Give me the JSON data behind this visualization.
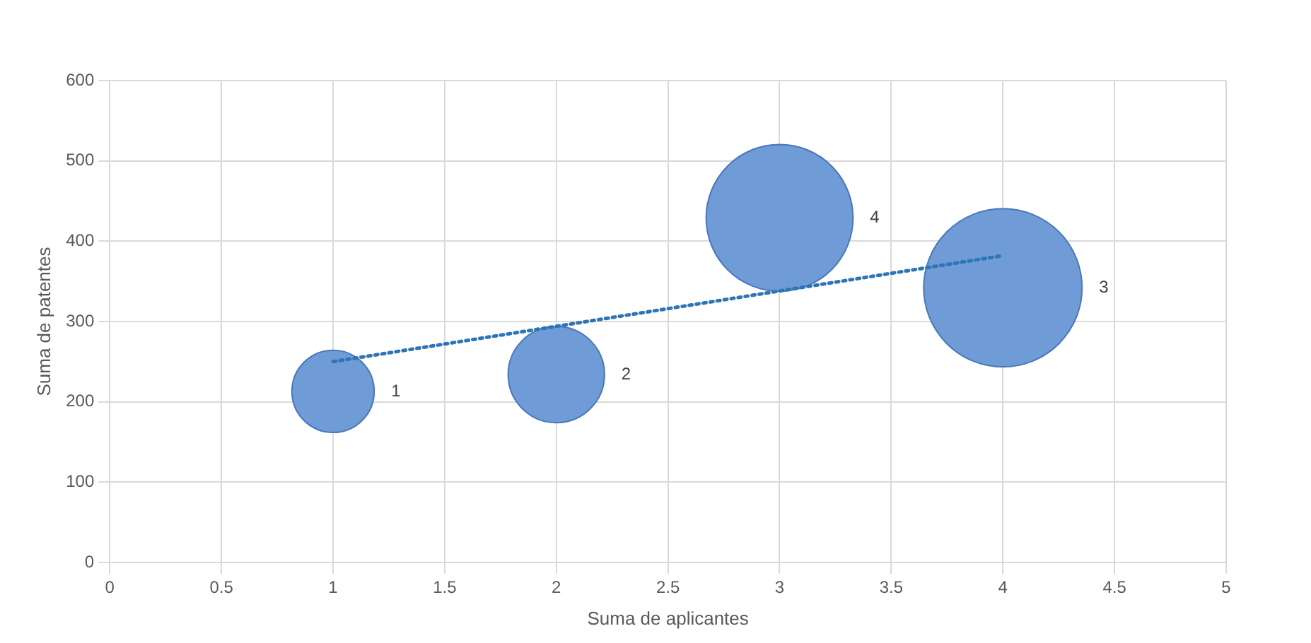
{
  "chart_data": {
    "type": "bubble",
    "xlabel": "Suma de aplicantes",
    "ylabel": "Suma de patentes",
    "xlim": [
      0,
      5
    ],
    "xticks": [
      0,
      0.5,
      1,
      1.5,
      2,
      2.5,
      3,
      3.5,
      4,
      4.5,
      5
    ],
    "ylim": [
      0,
      600
    ],
    "yticks": [
      0,
      100,
      200,
      300,
      400,
      500,
      600
    ],
    "grid": true,
    "legend": false,
    "series": [
      {
        "name": "1",
        "color": "#6f9bd6",
        "x": [
          1
        ],
        "values": [
          213
        ],
        "sizes": [
          0.27
        ]
      },
      {
        "name": "2",
        "color": "#6f9bd6",
        "x": [
          2
        ],
        "values": [
          234
        ],
        "sizes": [
          0.37
        ]
      },
      {
        "name": "4",
        "color": "#6f9bd6",
        "x": [
          3
        ],
        "values": [
          429
        ],
        "sizes": [
          0.86
        ]
      },
      {
        "name": "3",
        "color": "#6f9bd6",
        "x": [
          4
        ],
        "values": [
          342
        ],
        "sizes": [
          1
        ]
      },
      {
        "type": "line",
        "color": "#2e75b6",
        "line_style": "dotted",
        "marker": "none",
        "x": [
          1,
          4
        ],
        "values": [
          250,
          382
        ]
      }
    ]
  }
}
